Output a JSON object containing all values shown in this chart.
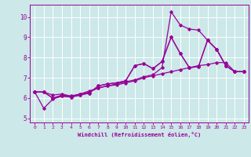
{
  "bg_color": "#cce8e8",
  "line_color": "#990099",
  "grid_color": "#ffffff",
  "font_color": "#990099",
  "font_name": "monospace",
  "xlabel": "Windchill (Refroidissement éolien,°C)",
  "xlim": [
    -0.5,
    23.5
  ],
  "ylim": [
    4.8,
    10.6
  ],
  "xticks": [
    0,
    1,
    2,
    3,
    4,
    5,
    6,
    7,
    8,
    9,
    10,
    11,
    12,
    13,
    14,
    15,
    16,
    17,
    18,
    19,
    20,
    21,
    22,
    23
  ],
  "yticks": [
    5,
    6,
    7,
    8,
    9,
    10
  ],
  "s1": [
    6.3,
    6.3,
    6.0,
    6.15,
    6.1,
    6.2,
    6.3,
    6.5,
    6.6,
    6.7,
    6.8,
    6.9,
    7.05,
    7.15,
    7.5,
    10.25,
    9.6,
    9.4,
    9.35,
    8.85,
    8.4,
    7.6,
    7.3,
    7.3
  ],
  "s2": [
    6.3,
    6.3,
    6.15,
    6.2,
    6.1,
    6.2,
    6.35,
    6.5,
    6.6,
    6.65,
    6.75,
    6.85,
    7.0,
    7.1,
    7.2,
    7.3,
    7.4,
    7.5,
    7.6,
    7.65,
    7.75,
    7.75,
    7.3,
    7.3
  ],
  "s3": [
    6.3,
    5.5,
    5.95,
    6.1,
    6.05,
    6.15,
    6.25,
    6.6,
    6.7,
    6.75,
    6.85,
    7.6,
    7.7,
    7.45,
    7.8,
    9.0,
    8.2,
    7.5,
    7.55,
    8.85,
    8.4,
    7.6,
    7.3,
    7.3
  ],
  "s4": [
    6.3,
    6.3,
    6.0,
    6.1,
    6.05,
    6.15,
    6.25,
    6.6,
    6.7,
    6.75,
    6.85,
    7.6,
    7.7,
    7.45,
    7.8,
    9.0,
    8.2,
    7.5,
    7.55,
    8.85,
    8.4,
    7.6,
    7.3,
    7.3
  ]
}
